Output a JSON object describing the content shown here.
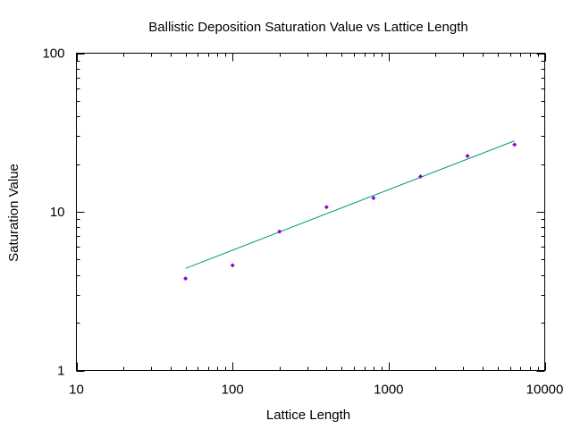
{
  "chart_data": {
    "type": "scatter",
    "title": "Ballistic Deposition Saturation Value vs Lattice Length",
    "xlabel": "Lattice Length",
    "ylabel": "Saturation Value",
    "xscale": "log",
    "yscale": "log",
    "xlim": [
      10,
      10000
    ],
    "ylim": [
      1,
      100
    ],
    "x_ticks": [
      "10",
      "100",
      "1000",
      "10000"
    ],
    "y_ticks": [
      "1",
      "10",
      "100"
    ],
    "grid": false,
    "legend": "none",
    "series": [
      {
        "type": "scatter",
        "color": "#9400d3",
        "x": [
          50,
          100,
          200,
          400,
          800,
          1600,
          3200,
          6400
        ],
        "y": [
          3.8,
          4.6,
          7.5,
          10.7,
          12.2,
          16.7,
          22.5,
          26.5
        ]
      },
      {
        "type": "line",
        "color": "#009e73",
        "x": [
          50,
          6400
        ],
        "y": [
          4.4,
          28.0
        ]
      }
    ]
  }
}
